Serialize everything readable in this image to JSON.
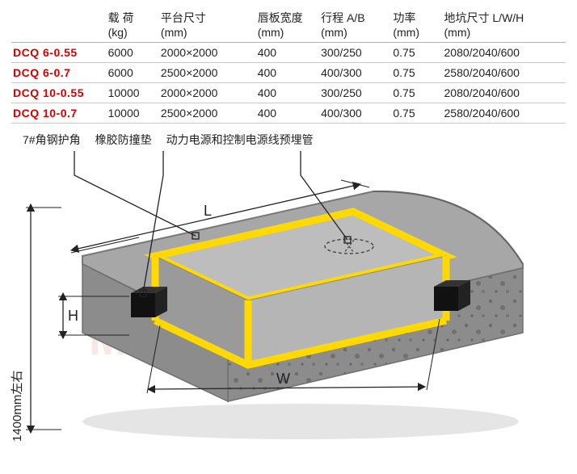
{
  "table": {
    "headers": [
      {
        "line1": "",
        "line2": ""
      },
      {
        "line1": "载 荷",
        "line2": "(kg)"
      },
      {
        "line1": "平台尺寸",
        "line2": "(mm)"
      },
      {
        "line1": "唇板宽度",
        "line2": "(mm)"
      },
      {
        "line1": "行程 A/B",
        "line2": "(mm)"
      },
      {
        "line1": "功率",
        "line2": "(mm)"
      },
      {
        "line1": "地坑尺寸 L/W/H",
        "line2": "(mm)"
      }
    ],
    "rows": [
      {
        "model": "DCQ 6-0.55",
        "load": "6000",
        "platform": "2000×2000",
        "lip": "400",
        "stroke": "300/250",
        "power": "0.75",
        "pit": "2080/2040/600"
      },
      {
        "model": "DCQ 6-0.7",
        "load": "6000",
        "platform": "2500×2000",
        "lip": "400",
        "stroke": "400/300",
        "power": "0.75",
        "pit": "2580/2040/600"
      },
      {
        "model": "DCQ 10-0.55",
        "load": "10000",
        "platform": "2000×2000",
        "lip": "400",
        "stroke": "300/250",
        "power": "0.75",
        "pit": "2080/2040/600"
      },
      {
        "model": "DCQ 10-0.7",
        "load": "10000",
        "platform": "2500×2000",
        "lip": "400",
        "stroke": "400/300",
        "power": "0.75",
        "pit": "2580/2040/600"
      }
    ]
  },
  "legend": {
    "l1": "7#角钢护角",
    "l2": "橡胶防撞垫",
    "l3": "动力电源和控制电源线预埋管"
  },
  "diagram": {
    "vertical_label": "1400mm左右",
    "dim_L": "L",
    "dim_H": "H",
    "dim_W": "W",
    "colors": {
      "concrete_top": "#a7a7a7",
      "concrete_side": "#8c8c8c",
      "concrete_edge": "#7d7d7d",
      "pit_wall": "#bdbdbd",
      "pit_floor": "#9e9e9e",
      "angle_steel": "#ffd900",
      "bumper": "#111111",
      "dim_line": "#222222",
      "speckle": "#555555"
    }
  },
  "watermark": {
    "top": "明华",
    "bottom": "MINGHUA"
  }
}
